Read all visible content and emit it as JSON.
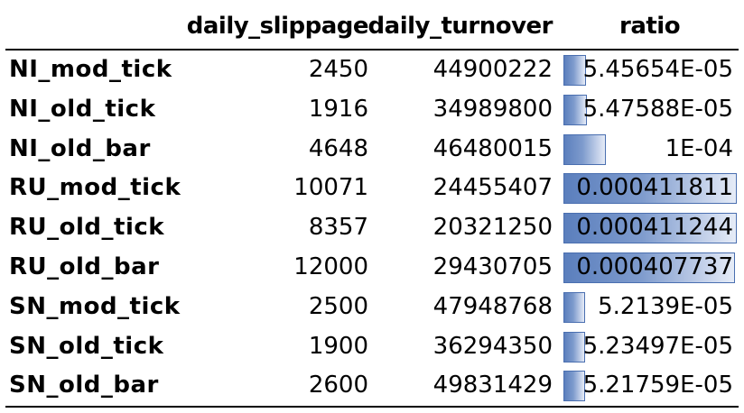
{
  "headers": {
    "name": "",
    "slippage": "daily_slippage",
    "turnover": "daily_turnover",
    "ratio": "ratio"
  },
  "rows": [
    {
      "name": "NI_mod_tick",
      "slippage": "2450",
      "turnover": "44900222",
      "ratio": "5.45654E-05",
      "ratio_value": 5.45654e-05
    },
    {
      "name": "NI_old_tick",
      "slippage": "1916",
      "turnover": "34989800",
      "ratio": "5.47588E-05",
      "ratio_value": 5.47588e-05
    },
    {
      "name": "NI_old_bar",
      "slippage": "4648",
      "turnover": "46480015",
      "ratio": "1E-04",
      "ratio_value": 0.0001
    },
    {
      "name": "RU_mod_tick",
      "slippage": "10071",
      "turnover": "24455407",
      "ratio": "0.000411811",
      "ratio_value": 0.000411811
    },
    {
      "name": "RU_old_tick",
      "slippage": "8357",
      "turnover": "20321250",
      "ratio": "0.000411244",
      "ratio_value": 0.000411244
    },
    {
      "name": "RU_old_bar",
      "slippage": "12000",
      "turnover": "29430705",
      "ratio": "0.000407737",
      "ratio_value": 0.000407737
    },
    {
      "name": "SN_mod_tick",
      "slippage": "2500",
      "turnover": "47948768",
      "ratio": "5.2139E-05",
      "ratio_value": 5.2139e-05
    },
    {
      "name": "SN_old_tick",
      "slippage": "1900",
      "turnover": "36294350",
      "ratio": "5.23497E-05",
      "ratio_value": 5.23497e-05
    },
    {
      "name": "SN_old_bar",
      "slippage": "2600",
      "turnover": "49831429",
      "ratio": "5.21759E-05",
      "ratio_value": 5.21759e-05
    }
  ],
  "databar_color": "#5b7fbd"
}
